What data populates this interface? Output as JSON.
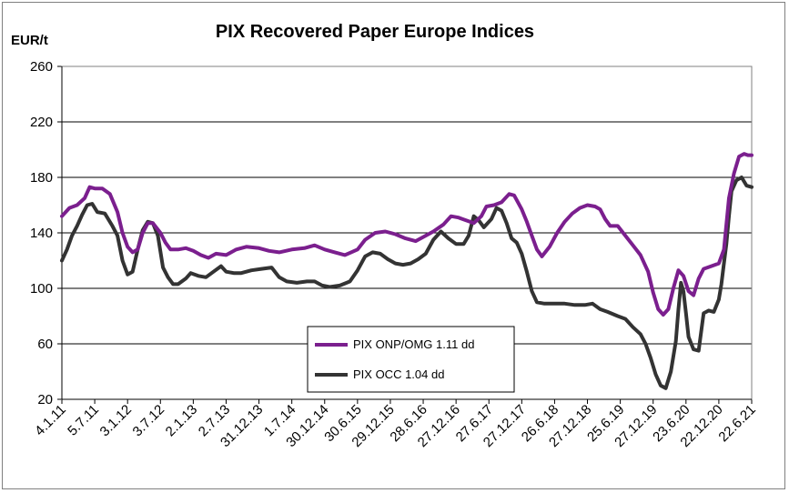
{
  "chart_data": {
    "type": "line",
    "title": "PIX Recovered Paper Europe Indices",
    "ylabel": "EUR/t",
    "xlabel": "",
    "ylim": [
      20,
      260
    ],
    "yticks": [
      20,
      60,
      100,
      140,
      180,
      220,
      260
    ],
    "xlim": [
      0,
      546
    ],
    "grid": "horizontal",
    "legend_position": "bottom-center",
    "x_tick_labels": [
      {
        "pos": 0,
        "label": "4.1.11"
      },
      {
        "pos": 26,
        "label": "5.7.11"
      },
      {
        "pos": 52,
        "label": "3.1.12"
      },
      {
        "pos": 78,
        "label": "3.7.12"
      },
      {
        "pos": 104,
        "label": "2.1.13"
      },
      {
        "pos": 130,
        "label": "2.7.13"
      },
      {
        "pos": 156,
        "label": "31.12.13"
      },
      {
        "pos": 182,
        "label": "1.7.14"
      },
      {
        "pos": 208,
        "label": "30.12.14"
      },
      {
        "pos": 234,
        "label": "30.6.15"
      },
      {
        "pos": 260,
        "label": "29.12.15"
      },
      {
        "pos": 286,
        "label": "28.6.16"
      },
      {
        "pos": 312,
        "label": "27.12.16"
      },
      {
        "pos": 338,
        "label": "27.6.17"
      },
      {
        "pos": 364,
        "label": "27.12.17"
      },
      {
        "pos": 390,
        "label": "26.6.18"
      },
      {
        "pos": 416,
        "label": "27.12.18"
      },
      {
        "pos": 442,
        "label": "25.6.19"
      },
      {
        "pos": 468,
        "label": "27.12.19"
      },
      {
        "pos": 494,
        "label": "23.6.20"
      },
      {
        "pos": 520,
        "label": "22.12.20"
      },
      {
        "pos": 546,
        "label": "22.6.21"
      }
    ],
    "series": [
      {
        "name": "PIX ONP/OMG 1.11 dd",
        "color": "#7B1F8E",
        "points": [
          [
            0,
            152
          ],
          [
            6,
            158
          ],
          [
            12,
            160
          ],
          [
            18,
            165
          ],
          [
            22,
            173
          ],
          [
            26,
            172
          ],
          [
            32,
            172
          ],
          [
            38,
            168
          ],
          [
            44,
            155
          ],
          [
            48,
            140
          ],
          [
            52,
            130
          ],
          [
            56,
            126
          ],
          [
            60,
            128
          ],
          [
            64,
            140
          ],
          [
            68,
            147
          ],
          [
            72,
            147
          ],
          [
            78,
            140
          ],
          [
            82,
            133
          ],
          [
            86,
            128
          ],
          [
            92,
            128
          ],
          [
            98,
            129
          ],
          [
            104,
            127
          ],
          [
            110,
            124
          ],
          [
            116,
            122
          ],
          [
            122,
            125
          ],
          [
            130,
            124
          ],
          [
            138,
            128
          ],
          [
            146,
            130
          ],
          [
            156,
            129
          ],
          [
            164,
            127
          ],
          [
            172,
            126
          ],
          [
            182,
            128
          ],
          [
            192,
            129
          ],
          [
            200,
            131
          ],
          [
            208,
            128
          ],
          [
            216,
            126
          ],
          [
            224,
            124
          ],
          [
            234,
            128
          ],
          [
            240,
            135
          ],
          [
            248,
            140
          ],
          [
            256,
            141
          ],
          [
            264,
            139
          ],
          [
            272,
            136
          ],
          [
            280,
            134
          ],
          [
            286,
            137
          ],
          [
            294,
            141
          ],
          [
            302,
            146
          ],
          [
            308,
            152
          ],
          [
            314,
            151
          ],
          [
            320,
            149
          ],
          [
            326,
            147
          ],
          [
            332,
            152
          ],
          [
            336,
            159
          ],
          [
            342,
            160
          ],
          [
            348,
            162
          ],
          [
            354,
            168
          ],
          [
            358,
            167
          ],
          [
            364,
            157
          ],
          [
            368,
            148
          ],
          [
            372,
            138
          ],
          [
            376,
            128
          ],
          [
            380,
            123
          ],
          [
            386,
            130
          ],
          [
            392,
            140
          ],
          [
            398,
            148
          ],
          [
            404,
            154
          ],
          [
            410,
            158
          ],
          [
            416,
            160
          ],
          [
            422,
            159
          ],
          [
            426,
            157
          ],
          [
            430,
            150
          ],
          [
            434,
            145
          ],
          [
            440,
            145
          ],
          [
            446,
            138
          ],
          [
            452,
            131
          ],
          [
            458,
            124
          ],
          [
            464,
            112
          ],
          [
            468,
            97
          ],
          [
            472,
            85
          ],
          [
            476,
            81
          ],
          [
            480,
            85
          ],
          [
            484,
            100
          ],
          [
            488,
            113
          ],
          [
            492,
            109
          ],
          [
            496,
            98
          ],
          [
            500,
            95
          ],
          [
            504,
            107
          ],
          [
            508,
            114
          ],
          [
            514,
            116
          ],
          [
            520,
            118
          ],
          [
            524,
            128
          ],
          [
            528,
            165
          ],
          [
            532,
            183
          ],
          [
            536,
            195
          ],
          [
            540,
            197
          ],
          [
            543,
            196
          ],
          [
            546,
            196
          ]
        ]
      },
      {
        "name": "PIX OCC 1.04 dd",
        "color": "#333333",
        "points": [
          [
            0,
            120
          ],
          [
            4,
            128
          ],
          [
            8,
            138
          ],
          [
            12,
            145
          ],
          [
            16,
            153
          ],
          [
            20,
            160
          ],
          [
            24,
            161
          ],
          [
            28,
            155
          ],
          [
            34,
            154
          ],
          [
            40,
            145
          ],
          [
            44,
            138
          ],
          [
            48,
            120
          ],
          [
            52,
            110
          ],
          [
            56,
            112
          ],
          [
            60,
            128
          ],
          [
            64,
            142
          ],
          [
            68,
            148
          ],
          [
            72,
            147
          ],
          [
            76,
            138
          ],
          [
            80,
            115
          ],
          [
            84,
            108
          ],
          [
            88,
            103
          ],
          [
            92,
            103
          ],
          [
            98,
            107
          ],
          [
            102,
            111
          ],
          [
            108,
            109
          ],
          [
            114,
            108
          ],
          [
            120,
            112
          ],
          [
            126,
            116
          ],
          [
            130,
            112
          ],
          [
            136,
            111
          ],
          [
            142,
            111
          ],
          [
            150,
            113
          ],
          [
            158,
            114
          ],
          [
            166,
            115
          ],
          [
            172,
            108
          ],
          [
            178,
            105
          ],
          [
            186,
            104
          ],
          [
            194,
            105
          ],
          [
            200,
            105
          ],
          [
            206,
            102
          ],
          [
            212,
            101
          ],
          [
            220,
            102
          ],
          [
            228,
            105
          ],
          [
            234,
            113
          ],
          [
            240,
            123
          ],
          [
            246,
            126
          ],
          [
            252,
            125
          ],
          [
            258,
            121
          ],
          [
            264,
            118
          ],
          [
            270,
            117
          ],
          [
            276,
            118
          ],
          [
            282,
            121
          ],
          [
            288,
            125
          ],
          [
            294,
            135
          ],
          [
            300,
            141
          ],
          [
            306,
            136
          ],
          [
            312,
            132
          ],
          [
            318,
            132
          ],
          [
            322,
            138
          ],
          [
            326,
            152
          ],
          [
            330,
            149
          ],
          [
            334,
            144
          ],
          [
            340,
            150
          ],
          [
            344,
            158
          ],
          [
            348,
            156
          ],
          [
            352,
            147
          ],
          [
            356,
            136
          ],
          [
            360,
            133
          ],
          [
            364,
            125
          ],
          [
            368,
            112
          ],
          [
            372,
            98
          ],
          [
            376,
            90
          ],
          [
            382,
            89
          ],
          [
            390,
            89
          ],
          [
            398,
            89
          ],
          [
            406,
            88
          ],
          [
            414,
            88
          ],
          [
            420,
            89
          ],
          [
            426,
            85
          ],
          [
            432,
            83
          ],
          [
            440,
            80
          ],
          [
            446,
            78
          ],
          [
            452,
            72
          ],
          [
            458,
            67
          ],
          [
            462,
            60
          ],
          [
            466,
            50
          ],
          [
            470,
            38
          ],
          [
            474,
            30
          ],
          [
            478,
            28
          ],
          [
            482,
            40
          ],
          [
            486,
            62
          ],
          [
            488,
            85
          ],
          [
            490,
            104
          ],
          [
            492,
            98
          ],
          [
            494,
            82
          ],
          [
            496,
            65
          ],
          [
            500,
            56
          ],
          [
            504,
            55
          ],
          [
            508,
            82
          ],
          [
            512,
            84
          ],
          [
            516,
            83
          ],
          [
            520,
            92
          ],
          [
            522,
            103
          ],
          [
            524,
            118
          ],
          [
            526,
            132
          ],
          [
            528,
            152
          ],
          [
            530,
            170
          ],
          [
            534,
            178
          ],
          [
            538,
            180
          ],
          [
            542,
            174
          ],
          [
            546,
            173
          ]
        ]
      }
    ]
  }
}
